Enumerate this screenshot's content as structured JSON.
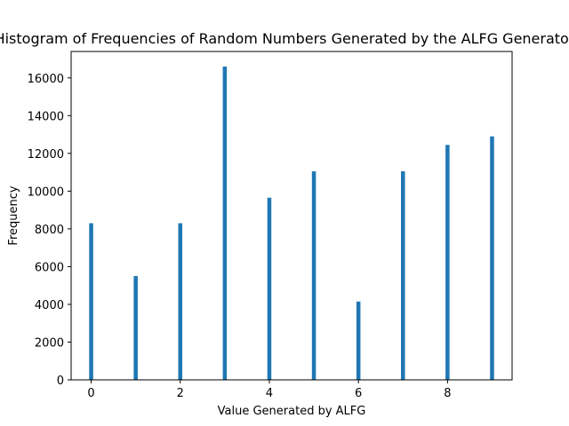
{
  "chart_data": {
    "type": "bar",
    "title": "Histogram of Frequencies of Random Numbers Generated by the ALFG Generator",
    "xlabel": "Value Generated by ALFG",
    "ylabel": "Frequency",
    "xlim": [
      -0.45,
      9.45
    ],
    "ylim": [
      0,
      17400
    ],
    "x_ticks": [
      0,
      2,
      4,
      6,
      8
    ],
    "y_ticks": [
      0,
      2000,
      4000,
      6000,
      8000,
      10000,
      12000,
      14000,
      16000
    ],
    "categories": [
      0,
      1,
      2,
      3,
      4,
      5,
      6,
      7,
      8,
      9
    ],
    "values": [
      8300,
      5500,
      8300,
      16600,
      9650,
      11050,
      4150,
      11050,
      12450,
      12900
    ],
    "bar_width": 0.09,
    "grid": false,
    "bar_color": "#1f77b4"
  }
}
